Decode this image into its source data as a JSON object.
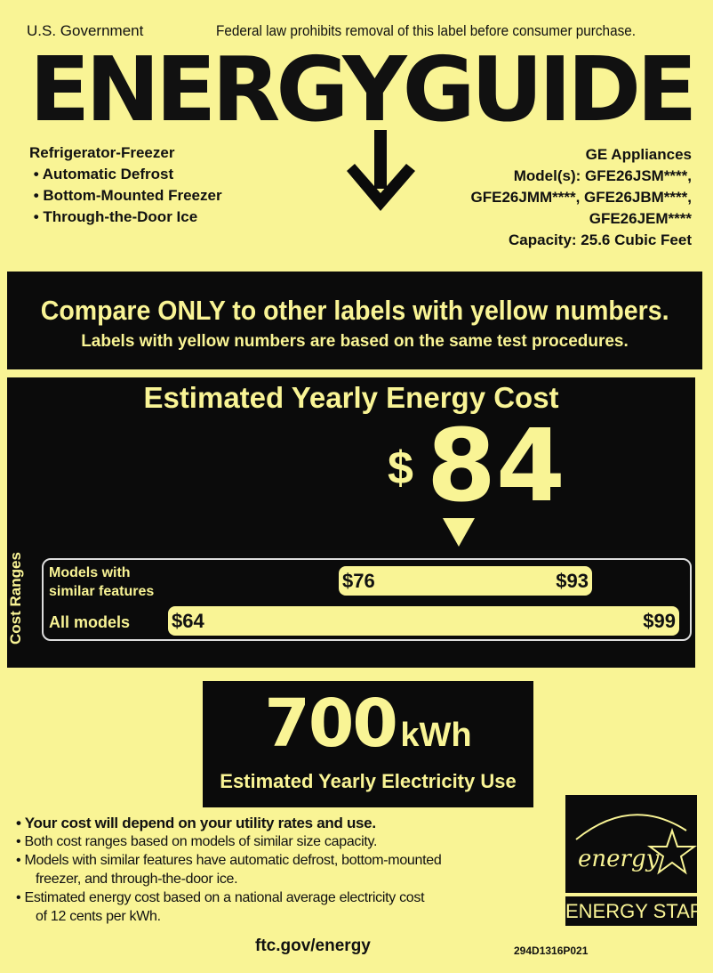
{
  "header": {
    "left": "U.S. Government",
    "right": "Federal law prohibits removal of this label before consumer purchase."
  },
  "logo": "ENERGYGUIDE",
  "product": {
    "type": "Refrigerator-Freezer",
    "features": [
      "Automatic Defrost",
      "Bottom-Mounted Freezer",
      "Through-the-Door Ice"
    ]
  },
  "maker": {
    "brand": "GE Appliances",
    "models_line1": "Model(s): GFE26JSM****,",
    "models_line2": "GFE26JMM****, GFE26JBM****,",
    "models_line3": "GFE26JEM****",
    "capacity": "Capacity: 25.6 Cubic Feet"
  },
  "compare": {
    "title": "Compare ONLY to other labels with yellow numbers.",
    "subtitle": "Labels with yellow numbers are based on the same test procedures."
  },
  "cost": {
    "title": "Estimated Yearly Energy Cost",
    "currency": "$",
    "value": "84",
    "value_number": 84
  },
  "ranges": {
    "side_label": "Cost Ranges",
    "similar": {
      "label1": "Models with",
      "label2": "similar features",
      "low": "$76",
      "high": "$93"
    },
    "all": {
      "label": "All models",
      "low": "$64",
      "high": "$99"
    }
  },
  "usage": {
    "value": "700",
    "unit": "kWh",
    "label": "Estimated Yearly Electricity Use"
  },
  "notes": [
    "Your cost will depend on your utility rates and use.",
    "Both cost ranges based on models of similar size capacity.",
    "Models with similar features have automatic defrost, bottom-mounted",
    "freezer, and through-the-door ice.",
    "Estimated energy cost based on a national average electricity cost",
    "of 12 cents per kWh."
  ],
  "footer": {
    "url": "ftc.gov/energy",
    "code": "294D1316P021"
  },
  "energy_star": {
    "script": "energy",
    "label": "ENERGY STAR"
  },
  "colors": {
    "label_yellow": "#f9f495",
    "black": "#0b0b0b"
  }
}
